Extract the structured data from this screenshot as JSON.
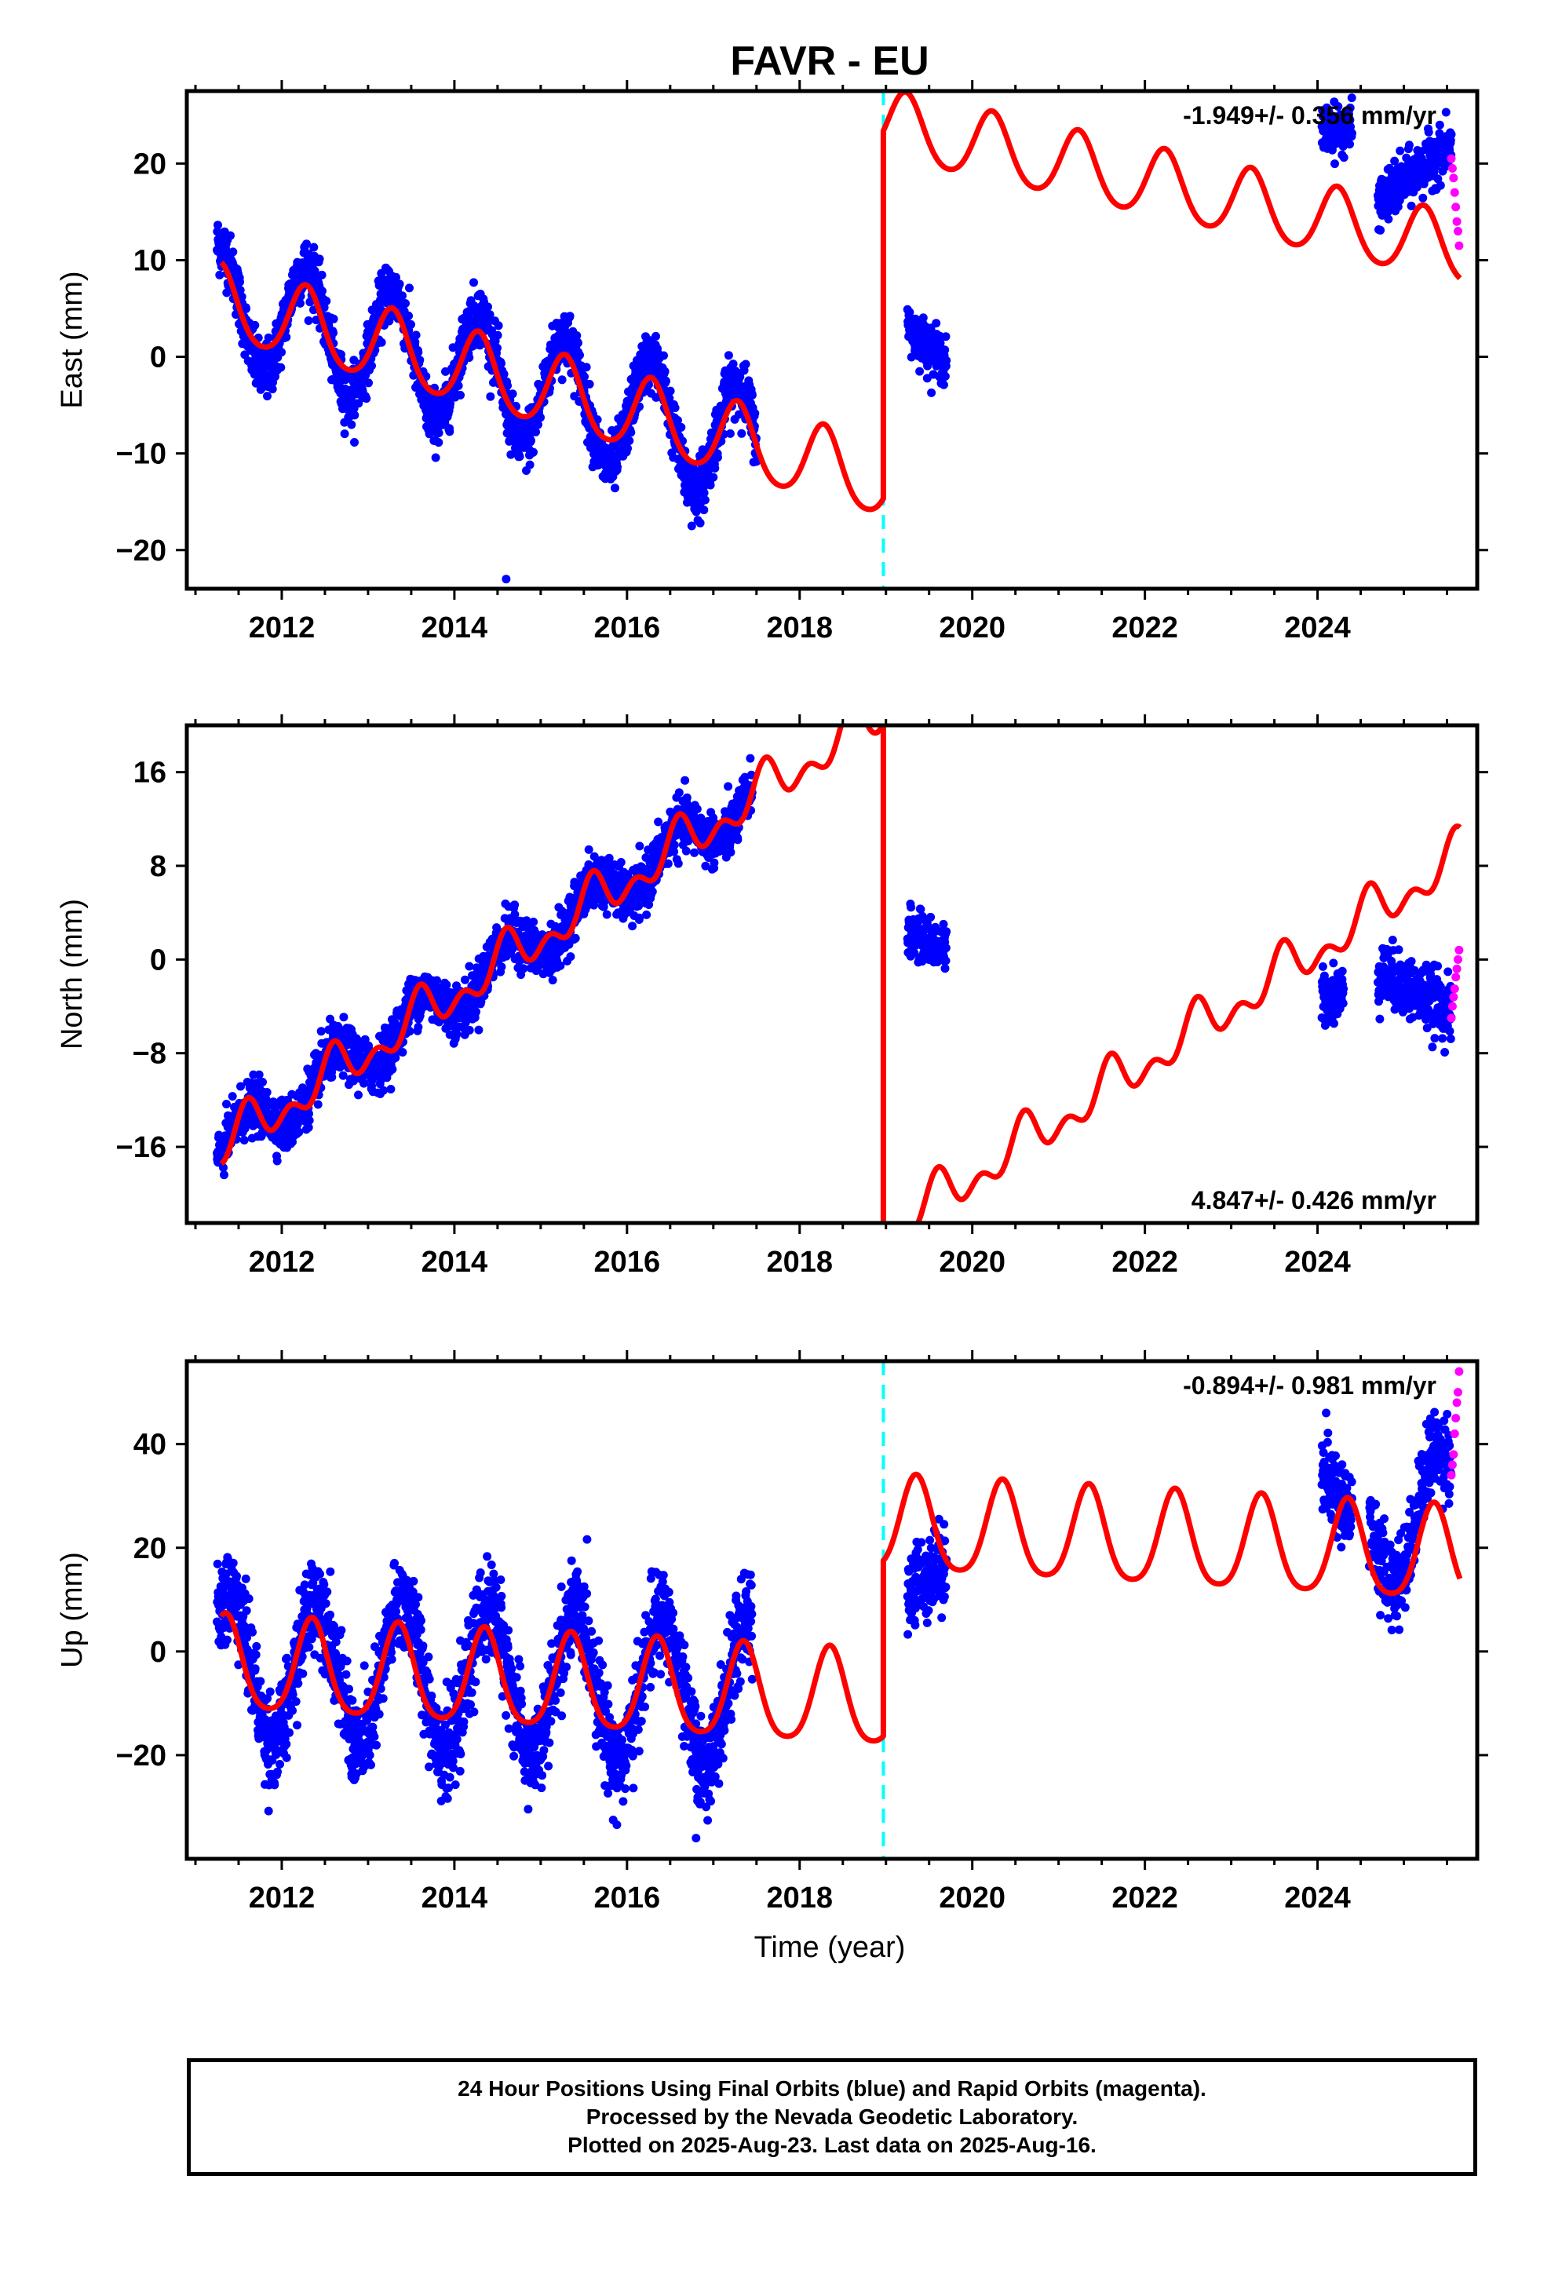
{
  "title": "FAVR - EU",
  "xlabel": "Time (year)",
  "footer": {
    "line1": "24 Hour Positions Using Final Orbits (blue) and Rapid Orbits (magenta).",
    "line2": "Processed by the Nevada Geodetic Laboratory.",
    "line3": "Plotted on 2025-Aug-23. Last data on 2025-Aug-16."
  },
  "colors": {
    "final_orbits": "#0000ff",
    "rapid_orbits": "#ff00ff",
    "model": "#ff0000",
    "equipment_change": "#00ffff"
  },
  "chart_data": [
    {
      "type": "scatter",
      "component": "east",
      "ylabel": "East (mm)",
      "rate_label": "-1.949+/- 0.356 mm/yr",
      "xlim": [
        2010.9,
        2025.85
      ],
      "ylim": [
        -24,
        27.5
      ],
      "yticks": [
        -20,
        -10,
        0,
        10,
        20
      ],
      "xticks": [
        2012,
        2014,
        2016,
        2018,
        2020,
        2022,
        2024
      ],
      "equipment_change_year": 2018.97,
      "model": {
        "rate_mm_per_yr": -1.949,
        "segments": [
          {
            "start": 2011.3,
            "end": 2018.97,
            "t0": 2011.3,
            "offset": 5.5,
            "rate": -2.4,
            "annual_amp": 3.8,
            "phase_peak": 0.28,
            "semi_amp": 0.5
          },
          {
            "start": 2018.97,
            "end": 2025.65,
            "t0": 2018.97,
            "offset": 24.0,
            "rate": -1.949,
            "annual_amp": 3.5,
            "phase_peak": 0.23,
            "semi_amp": 0.4
          }
        ]
      },
      "observations": [
        {
          "start": 2011.25,
          "end": 2017.5,
          "t0": 2011.3,
          "offset": 5.5,
          "rate": -2.4,
          "annual_amp": 6.0,
          "phase_peak": 0.28,
          "noise": 1.5
        },
        {
          "start": 2019.25,
          "end": 2019.7,
          "t0": 2019.25,
          "offset": 3.0,
          "rate": -8.0,
          "annual_amp": 0.0,
          "phase_peak": 0.28,
          "noise": 1.2
        },
        {
          "start": 2024.05,
          "end": 2024.4,
          "t0": 2024.05,
          "offset": 23.5,
          "rate": 0.0,
          "annual_amp": 0.0,
          "phase_peak": 0.28,
          "noise": 1.2
        },
        {
          "start": 2024.7,
          "end": 2025.55,
          "t0": 2024.7,
          "offset": 16.0,
          "rate": 7.0,
          "annual_amp": 0.0,
          "phase_peak": 0.28,
          "noise": 1.3
        }
      ],
      "rapid_observations": {
        "start": 2025.55,
        "end": 2025.64,
        "values": [
          20.5,
          19.5,
          18.5,
          17.0,
          15.5,
          14.0,
          13.0,
          11.5
        ]
      },
      "outliers": [
        {
          "x": 2014.6,
          "y": -23.0
        },
        {
          "x": 2016.75,
          "y": -17.5
        }
      ]
    },
    {
      "type": "scatter",
      "component": "north",
      "ylabel": "North (mm)",
      "rate_label": "4.847+/- 0.426 mm/yr",
      "xlim": [
        2010.9,
        2025.85
      ],
      "ylim": [
        -22.5,
        20
      ],
      "yticks": [
        -16,
        -8,
        0,
        8,
        16
      ],
      "xticks": [
        2012,
        2014,
        2016,
        2018,
        2020,
        2022,
        2024
      ],
      "equipment_change_year": 2018.97,
      "model": {
        "rate_mm_per_yr": 4.847,
        "segments": [
          {
            "start": 2011.3,
            "end": 2018.97,
            "t0": 2011.3,
            "offset": -16.0,
            "rate": 4.847,
            "annual_amp": 1.5,
            "phase_peak": 0.6,
            "semi_amp": 1.2
          },
          {
            "start": 2018.97,
            "end": 2025.65,
            "t0": 2018.97,
            "offset": -23.5,
            "rate": 4.847,
            "annual_amp": 1.5,
            "phase_peak": 0.6,
            "semi_amp": 1.2
          }
        ]
      },
      "observations": [
        {
          "start": 2011.25,
          "end": 2017.45,
          "t0": 2011.3,
          "offset": -16.0,
          "rate": 4.847,
          "annual_amp": 1.8,
          "phase_peak": 0.6,
          "noise": 1.1
        },
        {
          "start": 2019.25,
          "end": 2019.7,
          "t0": 2019.25,
          "offset": 2.5,
          "rate": -4.0,
          "annual_amp": 0.0,
          "phase_peak": 0.6,
          "noise": 1.0
        },
        {
          "start": 2024.05,
          "end": 2024.3,
          "t0": 2024.05,
          "offset": -3.0,
          "rate": 0.0,
          "annual_amp": 0.0,
          "phase_peak": 0.6,
          "noise": 1.2
        },
        {
          "start": 2024.7,
          "end": 2025.55,
          "t0": 2024.7,
          "offset": -1.0,
          "rate": -4.0,
          "annual_amp": 0.0,
          "phase_peak": 0.6,
          "noise": 1.3
        }
      ],
      "rapid_observations": {
        "start": 2025.55,
        "end": 2025.64,
        "values": [
          -5.0,
          -4.0,
          -3.2,
          -2.5,
          -1.5,
          -0.8,
          0.0,
          0.8
        ]
      },
      "outliers": []
    },
    {
      "type": "scatter",
      "component": "up",
      "ylabel": "Up (mm)",
      "rate_label": "-0.894+/- 0.981 mm/yr",
      "xlim": [
        2010.9,
        2025.85
      ],
      "ylim": [
        -40,
        56
      ],
      "yticks": [
        -20,
        0,
        20,
        40
      ],
      "xticks": [
        2012,
        2014,
        2016,
        2018,
        2020,
        2022,
        2024
      ],
      "equipment_change_year": 2018.97,
      "model": {
        "rate_mm_per_yr": -0.894,
        "segments": [
          {
            "start": 2011.3,
            "end": 2018.97,
            "t0": 2011.3,
            "offset": -3.0,
            "rate": -0.894,
            "annual_amp": 9.0,
            "phase_peak": 0.35,
            "semi_amp": 1.5
          },
          {
            "start": 2018.97,
            "end": 2025.65,
            "t0": 2018.97,
            "offset": 24.0,
            "rate": -0.894,
            "annual_amp": 9.0,
            "phase_peak": 0.35,
            "semi_amp": 1.5
          }
        ]
      },
      "observations": [
        {
          "start": 2011.25,
          "end": 2017.45,
          "t0": 2011.3,
          "offset": -3.0,
          "rate": -0.894,
          "annual_amp": 14.0,
          "phase_peak": 0.4,
          "noise": 4.5
        },
        {
          "start": 2019.25,
          "end": 2019.7,
          "t0": 2019.25,
          "offset": 12.0,
          "rate": 12.0,
          "annual_amp": 0.0,
          "phase_peak": 0.4,
          "noise": 4.0
        },
        {
          "start": 2024.05,
          "end": 2024.4,
          "t0": 2024.05,
          "offset": 34.0,
          "rate": -20.0,
          "annual_amp": 0.0,
          "phase_peak": 0.4,
          "noise": 4.0
        },
        {
          "start": 2024.6,
          "end": 2025.55,
          "t0": 2024.6,
          "offset": 22.0,
          "rate": 8.0,
          "annual_amp": 11.0,
          "phase_peak": 0.4,
          "noise": 4.0
        }
      ],
      "rapid_observations": {
        "start": 2025.55,
        "end": 2025.64,
        "values": [
          34,
          36,
          38,
          42,
          45,
          48,
          50,
          54
        ]
      },
      "outliers": [
        {
          "x": 2016.8,
          "y": -36.0
        },
        {
          "x": 2024.1,
          "y": 46.0
        }
      ]
    }
  ]
}
